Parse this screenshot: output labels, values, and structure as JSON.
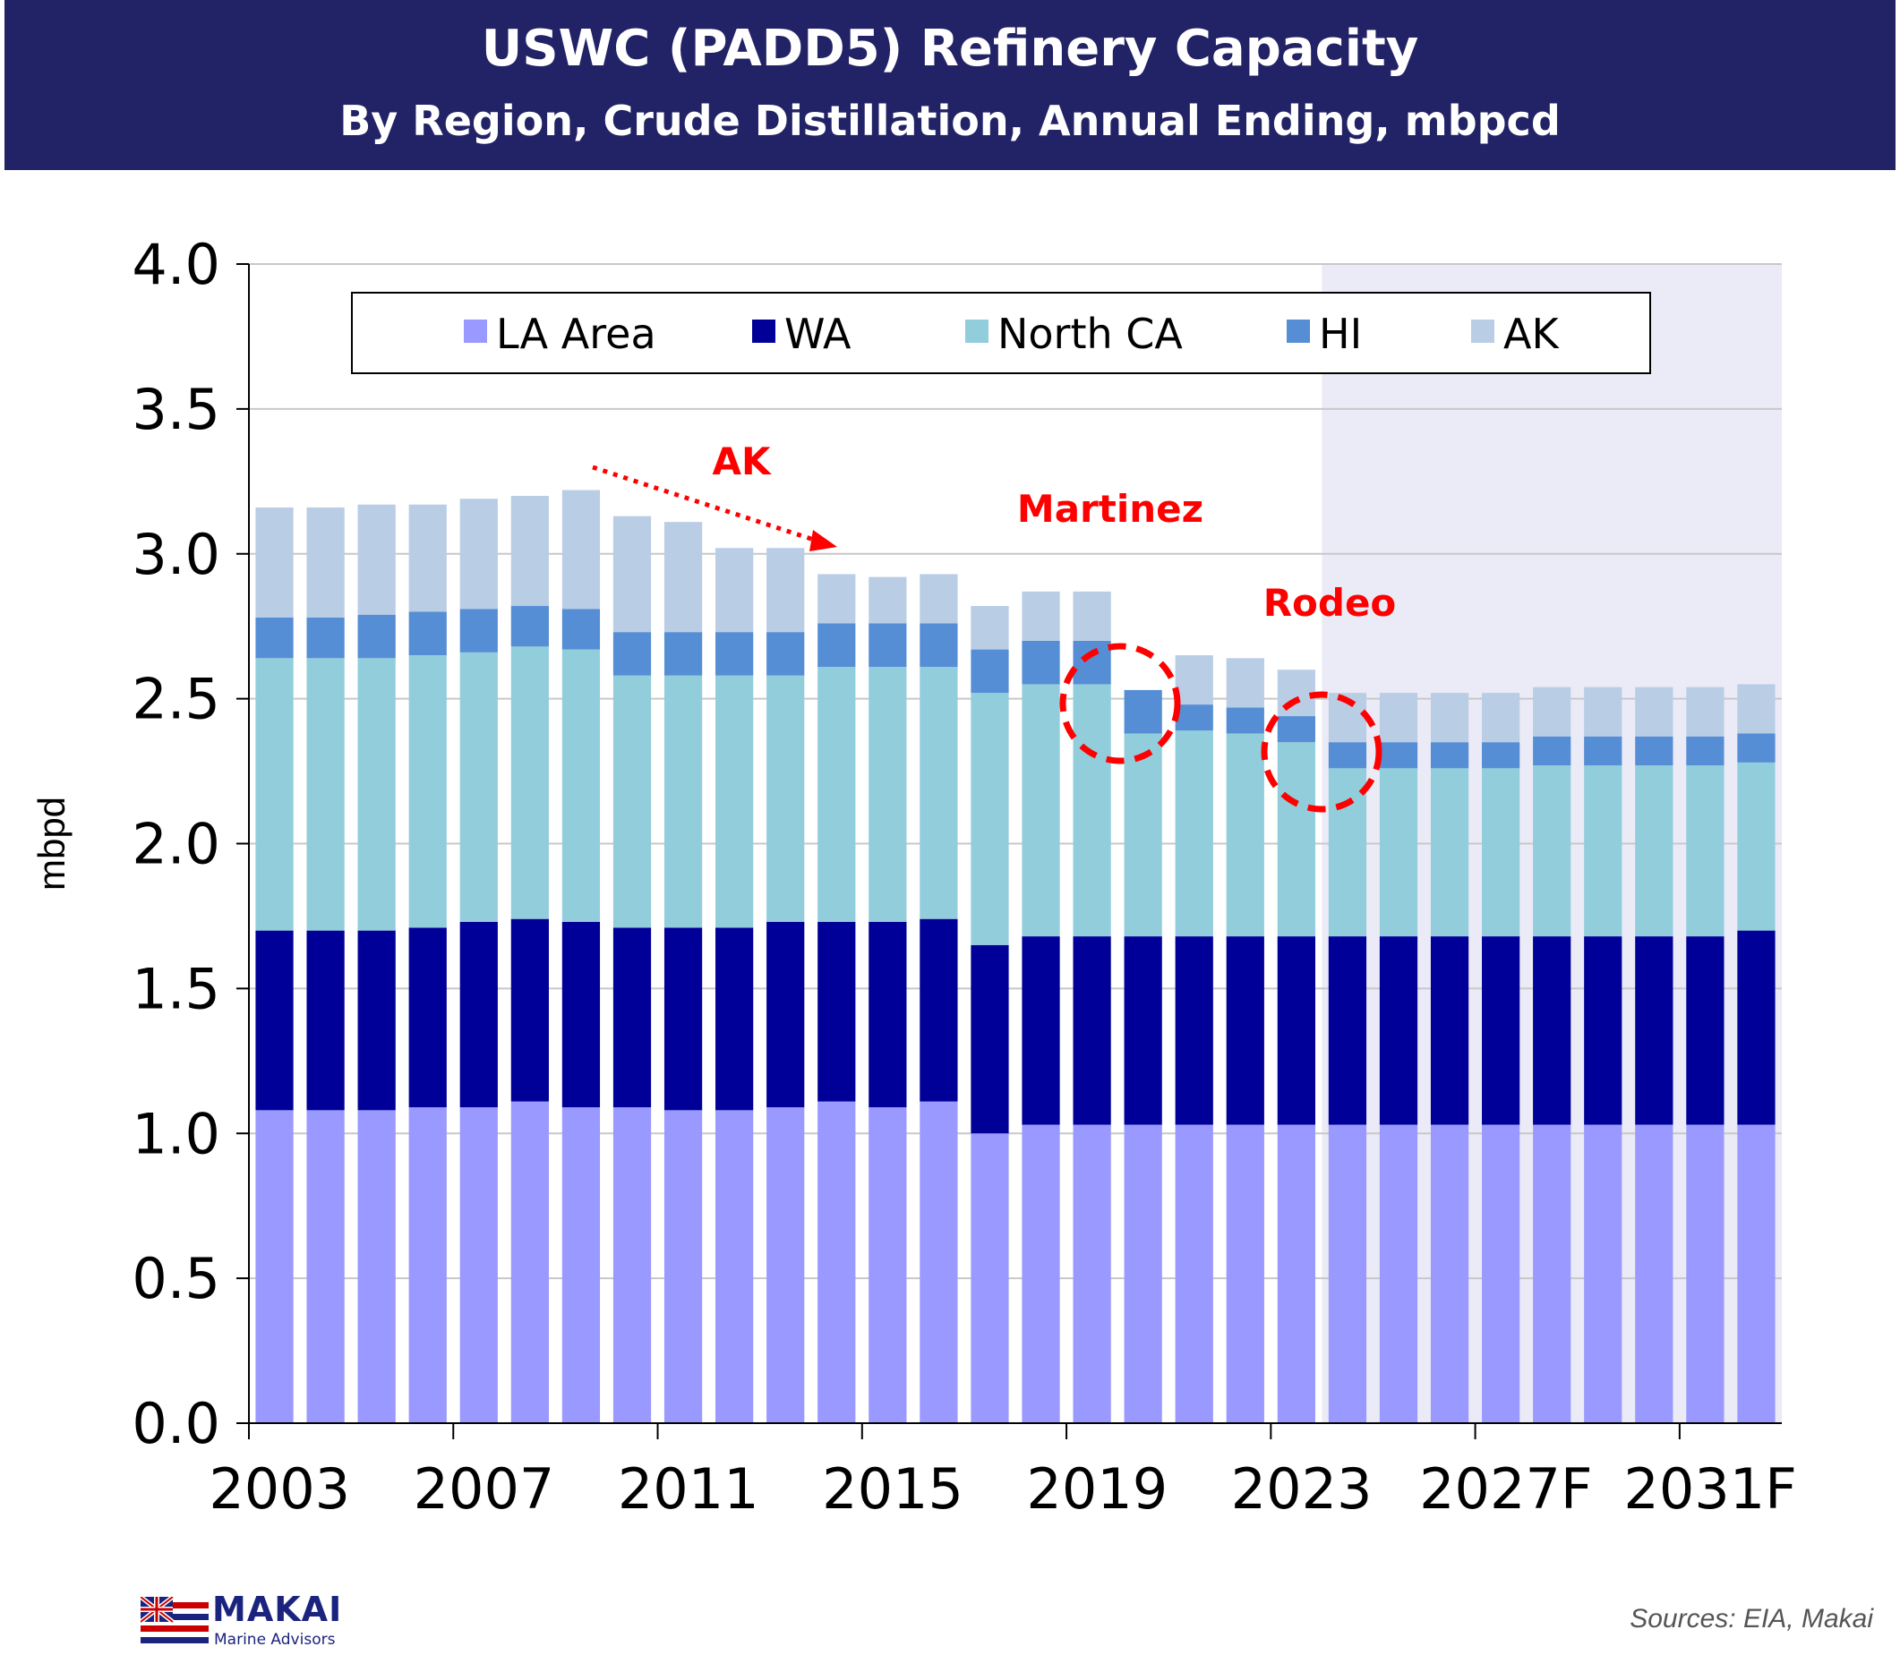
{
  "chart_data": {
    "type": "bar",
    "stacked": true,
    "title": "USWC (PADD5) Refinery Capacity",
    "subtitle": "By Region, Crude Distillation, Annual Ending, mbpcd",
    "ylabel": "mbpd",
    "ylim": [
      0,
      4
    ],
    "yticks": [
      "0.0",
      "0.5",
      "1.0",
      "1.5",
      "2.0",
      "2.5",
      "3.0",
      "3.5",
      "4.0"
    ],
    "grid": true,
    "legend_position": "top",
    "categories": [
      "2003",
      "2004",
      "2005",
      "2006",
      "2007",
      "2008",
      "2009",
      "2010",
      "2011",
      "2012",
      "2013",
      "2014",
      "2015",
      "2016",
      "2017",
      "2018",
      "2019",
      "2020",
      "2021",
      "2022",
      "2023",
      "2024F",
      "2025F",
      "2026F",
      "2027F",
      "2028F",
      "2029F",
      "2030F",
      "2031F",
      "2032F"
    ],
    "xtick_labels": [
      "2003",
      "2007",
      "2011",
      "2015",
      "2019",
      "2023",
      "2027F",
      "2031F"
    ],
    "forecast_start": "2024F",
    "series": [
      {
        "name": "LA Area",
        "color": "#9999ff",
        "values": [
          1.08,
          1.08,
          1.08,
          1.09,
          1.09,
          1.11,
          1.09,
          1.09,
          1.08,
          1.08,
          1.09,
          1.11,
          1.09,
          1.11,
          1.0,
          1.03,
          1.03,
          1.03,
          1.03,
          1.03,
          1.03,
          1.03,
          1.03,
          1.03,
          1.03,
          1.03,
          1.03,
          1.03,
          1.03,
          1.03
        ]
      },
      {
        "name": "WA",
        "color": "#000099",
        "values": [
          0.62,
          0.62,
          0.62,
          0.62,
          0.64,
          0.63,
          0.64,
          0.62,
          0.63,
          0.63,
          0.64,
          0.62,
          0.64,
          0.63,
          0.65,
          0.65,
          0.65,
          0.65,
          0.65,
          0.65,
          0.65,
          0.65,
          0.65,
          0.65,
          0.65,
          0.65,
          0.65,
          0.65,
          0.65,
          0.67
        ]
      },
      {
        "name": "North CA",
        "color": "#92cddc",
        "values": [
          0.94,
          0.94,
          0.94,
          0.94,
          0.93,
          0.94,
          0.94,
          0.87,
          0.87,
          0.87,
          0.85,
          0.88,
          0.88,
          0.87,
          0.87,
          0.87,
          0.87,
          0.7,
          0.71,
          0.7,
          0.67,
          0.58,
          0.58,
          0.58,
          0.58,
          0.59,
          0.59,
          0.59,
          0.59,
          0.58
        ]
      },
      {
        "name": "HI",
        "color": "#558ed5",
        "values": [
          0.14,
          0.14,
          0.15,
          0.15,
          0.15,
          0.14,
          0.14,
          0.15,
          0.15,
          0.15,
          0.15,
          0.15,
          0.15,
          0.15,
          0.15,
          0.15,
          0.15,
          0.15,
          0.09,
          0.09,
          0.09,
          0.09,
          0.09,
          0.09,
          0.09,
          0.1,
          0.1,
          0.1,
          0.1,
          0.1
        ]
      },
      {
        "name": "AK",
        "color": "#b9cde5",
        "values": [
          0.38,
          0.38,
          0.38,
          0.37,
          0.38,
          0.38,
          0.41,
          0.4,
          0.38,
          0.29,
          0.29,
          0.17,
          0.16,
          0.17,
          0.15,
          0.17,
          0.17,
          0.0,
          0.17,
          0.17,
          0.16,
          0.17,
          0.17,
          0.17,
          0.17,
          0.17,
          0.17,
          0.17,
          0.17,
          0.17
        ]
      }
    ],
    "annotations": [
      {
        "text": "AK",
        "color": "#ff0000"
      },
      {
        "text": "Martinez",
        "color": "#ff0000"
      },
      {
        "text": "Rodeo",
        "color": "#ff0000"
      }
    ]
  },
  "footer": {
    "logo_name": "MAKAI",
    "logo_sub": "Marine Advisors",
    "source": "Sources: EIA, Makai"
  },
  "colors": {
    "banner": "#222266",
    "forecast_shade": "#ebebf7",
    "annotation": "#ff0000"
  }
}
